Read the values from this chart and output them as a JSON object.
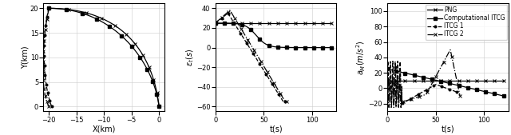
{
  "fig_width": 6.4,
  "fig_height": 1.69,
  "dpi": 100,
  "ax1": {
    "xlabel": "X(km)",
    "ylabel": "Y(km)",
    "xlim": [
      -21,
      1
    ],
    "ylim": [
      -1,
      21
    ],
    "xticks": [
      -20,
      -15,
      -10,
      -5,
      0
    ],
    "yticks": [
      0,
      5,
      10,
      15,
      20
    ]
  },
  "ax2": {
    "xlabel": "t(s)",
    "xlim": [
      0,
      125
    ],
    "ylim": [
      -65,
      45
    ],
    "xticks": [
      0,
      50,
      100
    ],
    "yticks": [
      -60,
      -40,
      -20,
      0,
      20,
      40
    ]
  },
  "ax3": {
    "xlabel": "t(s)",
    "xlim": [
      0,
      125
    ],
    "ylim": [
      -30,
      110
    ],
    "xticks": [
      0,
      50,
      100
    ],
    "yticks": [
      -20,
      0,
      20,
      40,
      60,
      80,
      100
    ]
  },
  "legend_labels": [
    "PNG",
    "Computational ITCG",
    "ITCG 1",
    "ITCG 2"
  ],
  "grid_color": "#cccccc",
  "tick_fontsize": 6,
  "label_fontsize": 7,
  "legend_fontsize": 5.5
}
